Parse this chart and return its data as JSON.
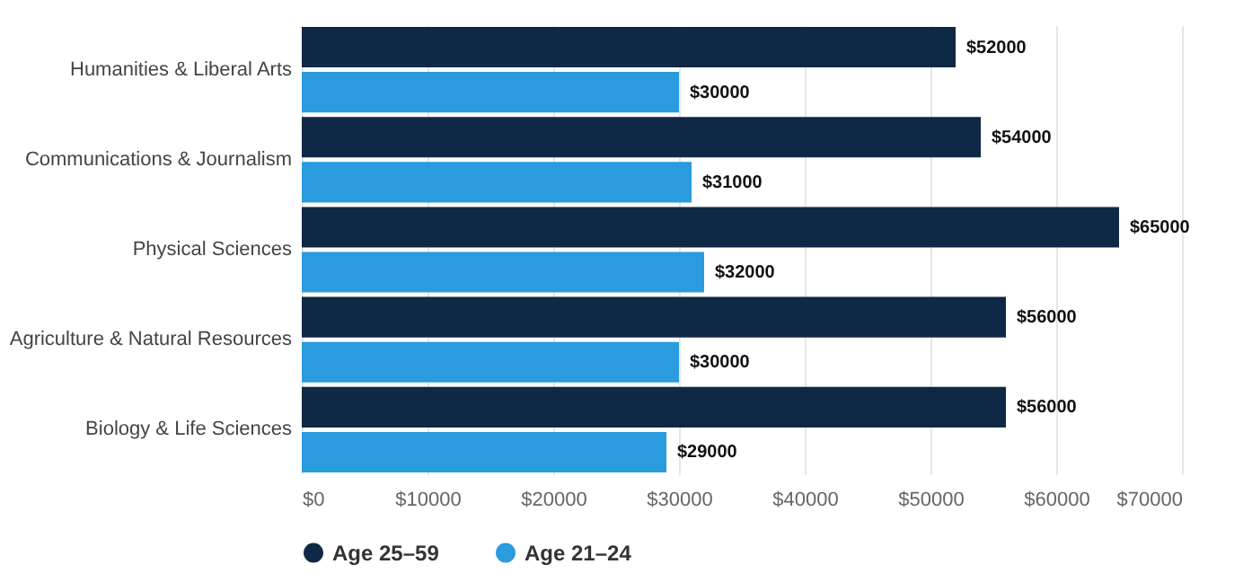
{
  "chart_data": {
    "type": "bar",
    "orientation": "horizontal",
    "categories": [
      "Humanities & Liberal Arts",
      "Communications & Journalism",
      "Physical Sciences",
      "Agriculture & Natural Resources",
      "Biology & Life Sciences"
    ],
    "series": [
      {
        "name": "Age 25–59",
        "color": "#0f2846",
        "values": [
          52000,
          54000,
          65000,
          56000,
          56000
        ],
        "value_labels": [
          "$52000",
          "$54000",
          "$65000",
          "$56000",
          "$56000"
        ]
      },
      {
        "name": "Age 21–24",
        "color": "#2a9bdc",
        "values": [
          30000,
          31000,
          32000,
          30000,
          29000
        ],
        "value_labels": [
          "$30000",
          "$31000",
          "$32000",
          "$30000",
          "$29000"
        ]
      }
    ],
    "xlim": [
      0,
      70000
    ],
    "xticks": [
      {
        "value": 0,
        "label": "$0"
      },
      {
        "value": 10000,
        "label": "$10000"
      },
      {
        "value": 20000,
        "label": "$20000"
      },
      {
        "value": 30000,
        "label": "$30000"
      },
      {
        "value": 40000,
        "label": "$40000"
      },
      {
        "value": 50000,
        "label": "$50000"
      },
      {
        "value": 60000,
        "label": "$60000"
      },
      {
        "value": 70000,
        "label": "$70000"
      }
    ],
    "grid": "x",
    "legend": "bottom"
  }
}
